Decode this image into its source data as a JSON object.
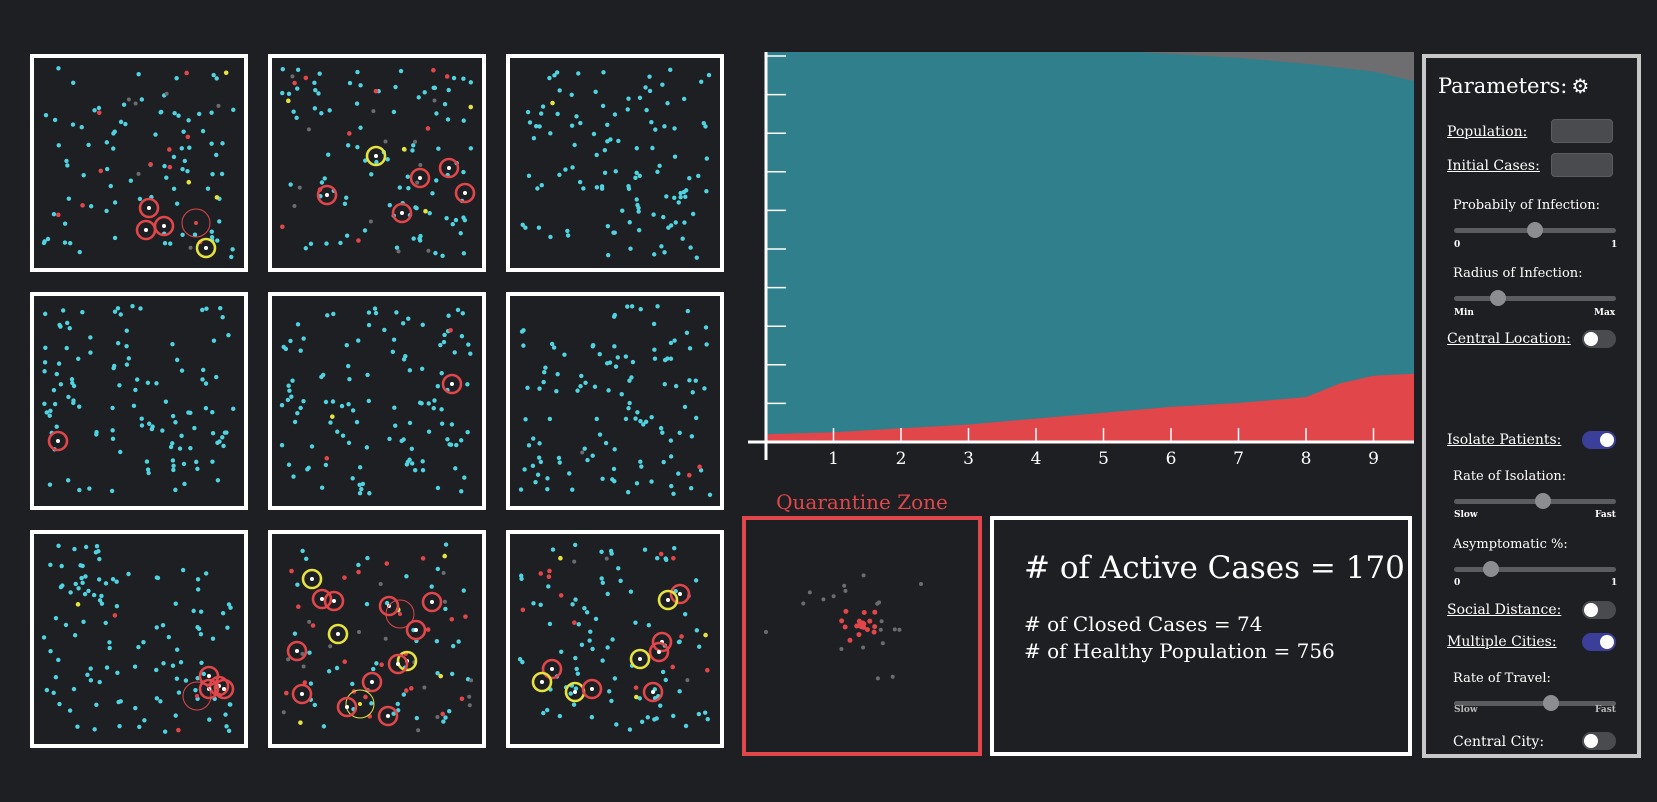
{
  "colors": {
    "healthy": "#4fd3e0",
    "infected": "#e0464a",
    "asymptomatic": "#e7e33d",
    "closed": "#6b6c70",
    "area_healthy": "#2f7f8c",
    "area_infected": "#e0464a",
    "area_closed": "#6e6e70"
  },
  "chart_data": {
    "type": "area",
    "x_ticks": [
      "1",
      "2",
      "3",
      "4",
      "5",
      "6",
      "7",
      "8",
      "9"
    ],
    "xlim": [
      0,
      9.6
    ],
    "series": [
      {
        "key": "infected",
        "x": [
          0,
          1,
          2,
          3,
          4,
          5,
          6,
          7,
          8,
          8.5,
          9,
          9.6
        ],
        "y": [
          0.02,
          0.025,
          0.035,
          0.045,
          0.06,
          0.075,
          0.09,
          0.1,
          0.115,
          0.15,
          0.17,
          0.175
        ]
      },
      {
        "key": "closed",
        "x": [
          0,
          5.5,
          6,
          7,
          8,
          9,
          9.6
        ],
        "y": [
          0,
          0,
          0.005,
          0.015,
          0.03,
          0.05,
          0.075
        ]
      }
    ]
  },
  "quarantine": {
    "title": "Quarantine Zone"
  },
  "stats": {
    "active": "# of Active Cases = 170",
    "closed": "# of Closed Cases = 74",
    "healthy": "# of Healthy Population = 756"
  },
  "panel": {
    "title": "Parameters:",
    "population_label": "Population:",
    "initial_cases_label": "Initial Cases:",
    "prob_label": "Probabily of Infection:",
    "prob_min": "0",
    "prob_max": "1",
    "prob_value": 0.5,
    "radius_label": "Radius of Infection:",
    "radius_min": "Min",
    "radius_max": "Max",
    "radius_value": 0.27,
    "central_location_label": "Central Location:",
    "isolate_label": "Isolate Patients:",
    "rate_isolation_label": "Rate of Isolation:",
    "iso_min": "Slow",
    "iso_max": "Fast",
    "iso_value": 0.55,
    "asym_label": "Asymptomatic %:",
    "asym_min": "0",
    "asym_max": "1",
    "asym_value": 0.23,
    "social_distance_label": "Social Distance:",
    "multiple_cities_label": "Multiple Cities:",
    "rate_travel_label": "Rate of Travel:",
    "travel_min": "Slow",
    "travel_max": "Fast",
    "travel_value": 0.6,
    "central_city_label": "Central City:"
  }
}
